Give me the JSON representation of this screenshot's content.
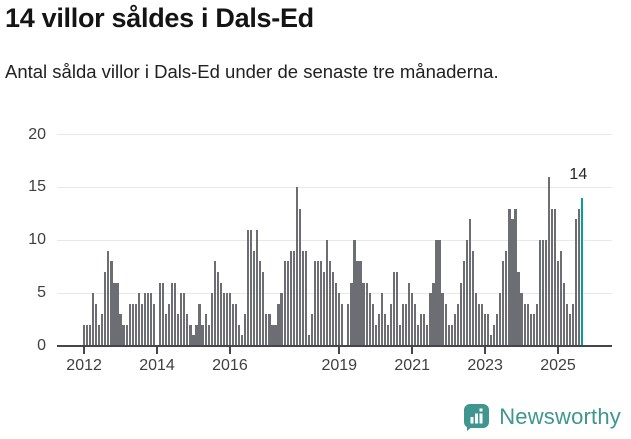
{
  "header": {
    "title": "14 villor såldes i Dals-Ed",
    "subtitle": "Antal sålda villor i Dals-Ed under de senaste tre månaderna."
  },
  "chart_data": {
    "type": "bar",
    "title": "14 villor såldes i Dals-Ed",
    "xlabel": "",
    "ylabel": "",
    "x_start": "2012-01",
    "x_end": "2025-09",
    "frequency": "monthly",
    "values": [
      2,
      2,
      2,
      5,
      4,
      2,
      3,
      7,
      9,
      8,
      6,
      6,
      3,
      2,
      2,
      4,
      4,
      4,
      5,
      4,
      5,
      5,
      5,
      4,
      0,
      6,
      6,
      3,
      4,
      6,
      6,
      3,
      5,
      5,
      3,
      2,
      1,
      2,
      4,
      2,
      3,
      2,
      5,
      8,
      7,
      6,
      5,
      5,
      5,
      4,
      4,
      2,
      1,
      3,
      11,
      11,
      9,
      11,
      8,
      7,
      3,
      3,
      2,
      2,
      4,
      5,
      8,
      8,
      9,
      9,
      15,
      13,
      9,
      9,
      1,
      3,
      8,
      8,
      8,
      7,
      10,
      8,
      7,
      6,
      5,
      4,
      0,
      4,
      6,
      10,
      8,
      8,
      6,
      6,
      5,
      4,
      2,
      3,
      5,
      3,
      2,
      4,
      7,
      7,
      2,
      4,
      4,
      6,
      5,
      4,
      2,
      3,
      3,
      2,
      5,
      6,
      10,
      10,
      5,
      4,
      2,
      2,
      3,
      4,
      6,
      8,
      10,
      12,
      9,
      5,
      4,
      4,
      3,
      3,
      1,
      2,
      3,
      5,
      8,
      9,
      13,
      12,
      13,
      7,
      5,
      4,
      4,
      3,
      3,
      4,
      10,
      10,
      10,
      16,
      13,
      13,
      8,
      9,
      6,
      4,
      3,
      4,
      12,
      13,
      14
    ],
    "ylim": [
      0,
      20
    ],
    "yticks": [
      0,
      5,
      10,
      15,
      20
    ],
    "xticks": [
      2012,
      2014,
      2016,
      2019,
      2021,
      2023,
      2025
    ],
    "grid": true,
    "legend": "none",
    "bar_color": "#6d6d74",
    "highlight": {
      "index": 164,
      "label": "14",
      "color": "#00a0a0"
    }
  },
  "footer": {
    "brand": "Newsworthy",
    "brand_color": "#3e968f",
    "logo_icon": "bar-chart-speech-bubble-icon"
  },
  "colors": {
    "background": "#ffffff",
    "grid": "#e8e8e8",
    "axis": "#45454b",
    "text": "#3f3f3f"
  }
}
